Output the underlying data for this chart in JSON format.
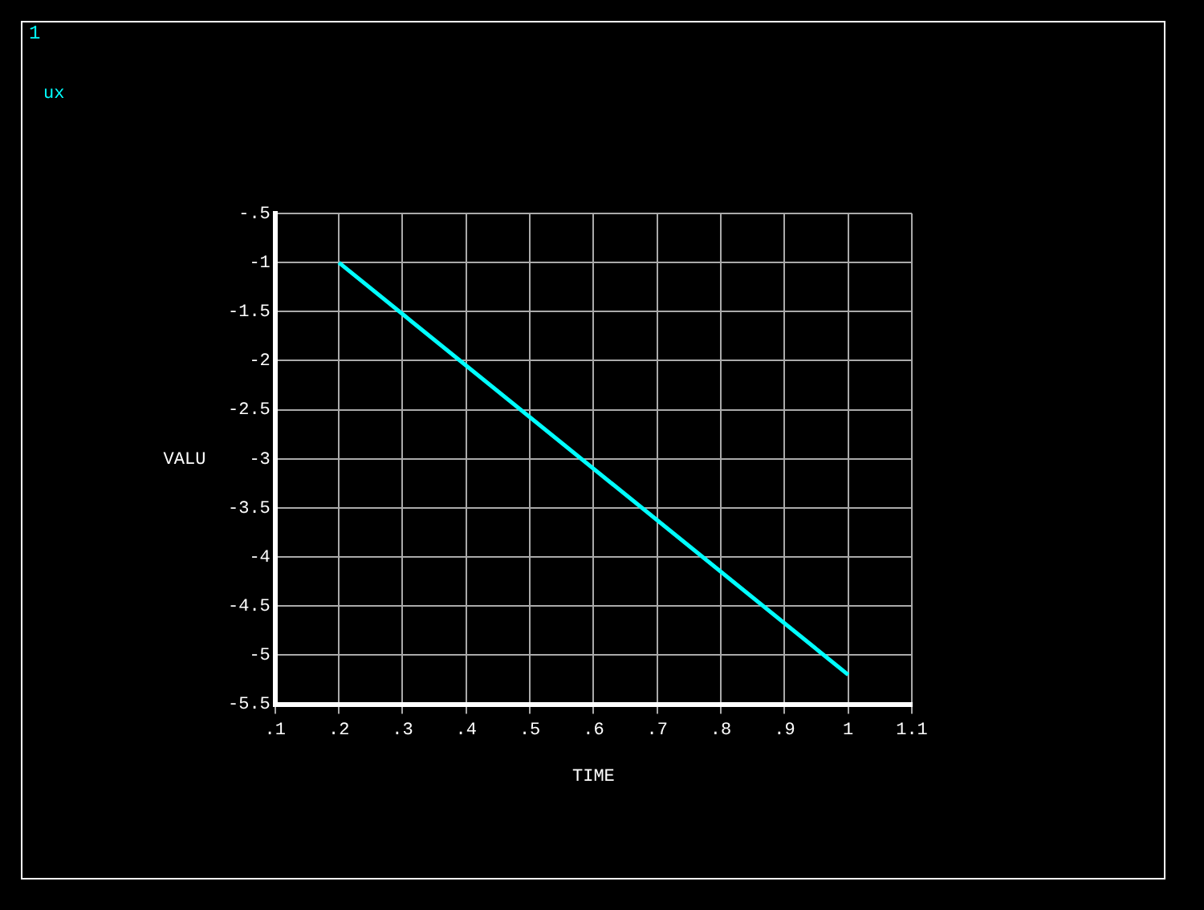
{
  "chart_data": {
    "type": "line",
    "xlabel": "TIME",
    "ylabel": "VALU",
    "annotations": [
      "1"
    ],
    "x": [
      0.2,
      1.0
    ],
    "series": [
      {
        "name": "ux",
        "color": "#00ffff",
        "values": [
          -1.0,
          -5.2
        ]
      }
    ],
    "xlim": [
      0.1,
      1.1
    ],
    "xticks": [
      {
        "value": 0.1,
        "label": ".1"
      },
      {
        "value": 0.2,
        "label": ".2"
      },
      {
        "value": 0.3,
        "label": ".3"
      },
      {
        "value": 0.4,
        "label": ".4"
      },
      {
        "value": 0.5,
        "label": ".5"
      },
      {
        "value": 0.6,
        "label": ".6"
      },
      {
        "value": 0.7,
        "label": ".7"
      },
      {
        "value": 0.8,
        "label": ".8"
      },
      {
        "value": 0.9,
        "label": ".9"
      },
      1,
      1.1
    ],
    "ylim": [
      -5.5,
      -0.5
    ],
    "yticks": [
      -5.5,
      -5,
      -4.5,
      -4,
      -3.5,
      -3,
      -2.5,
      -2,
      -1.5,
      -1,
      {
        "value": -0.5,
        "label": "-.5"
      }
    ],
    "grid": true,
    "legend": "top left",
    "marker": "none",
    "line_style": "solid"
  }
}
